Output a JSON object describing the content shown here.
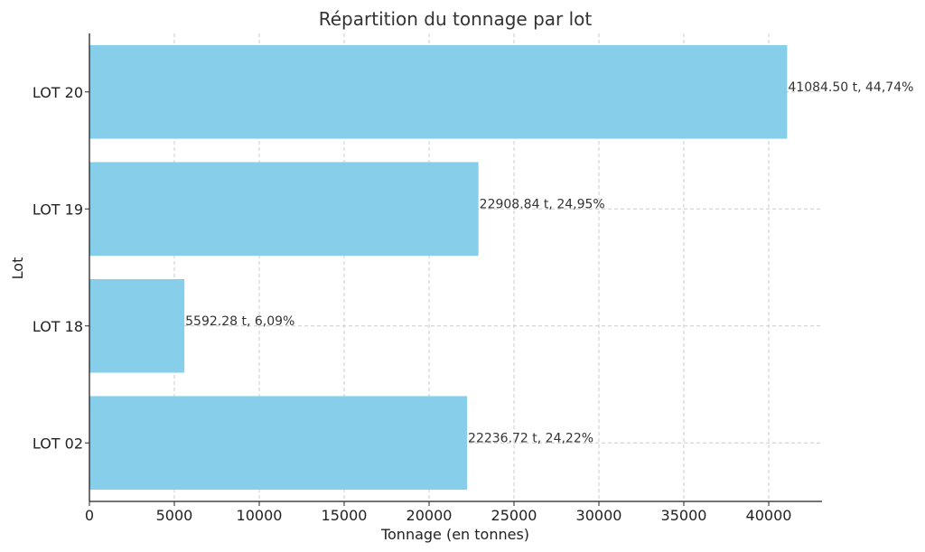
{
  "chart_data": {
    "type": "bar",
    "orientation": "horizontal",
    "title": "Répartition du tonnage par lot",
    "xlabel": "Tonnage (en tonnes)",
    "ylabel": "Lot",
    "categories": [
      "LOT 02",
      "LOT 18",
      "LOT 19",
      "LOT 20"
    ],
    "values": [
      22236.72,
      5592.28,
      22908.84,
      41084.5
    ],
    "data_labels": [
      "22236.72 t, 24,22%",
      "5592.28 t, 6,09%",
      "22908.84 t, 24,95%",
      "41084.50 t, 44,74%"
    ],
    "xlim": [
      0,
      43138.7
    ],
    "xticks": [
      0,
      5000,
      10000,
      15000,
      20000,
      25000,
      30000,
      35000,
      40000
    ],
    "grid": true,
    "bar_color": "#87ceeb"
  }
}
